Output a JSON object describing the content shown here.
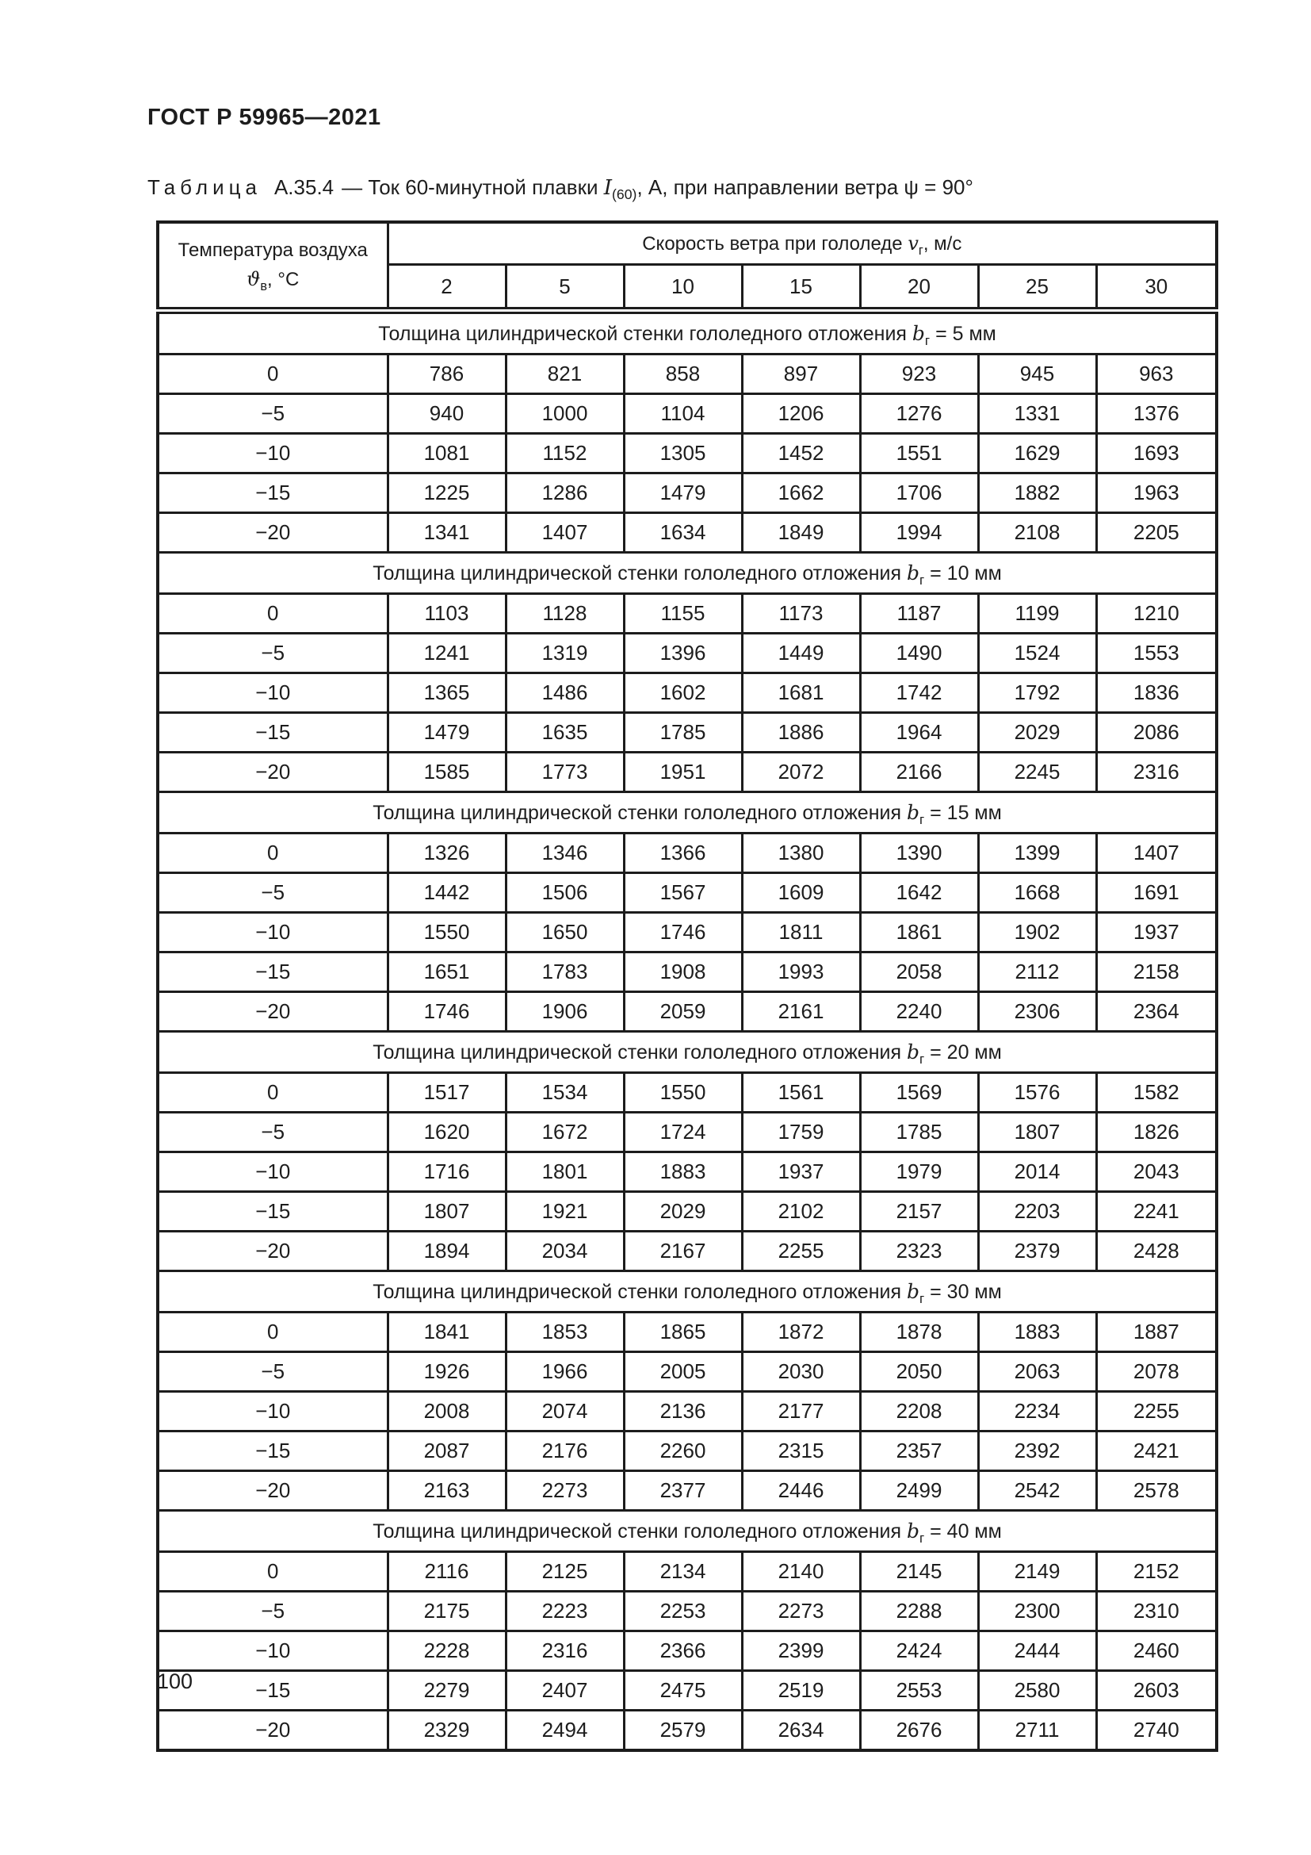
{
  "page": {
    "doc_code": "ГОСТ Р 59965—2021",
    "page_number": "100"
  },
  "table_title": {
    "label": "Таблица",
    "number": "А.35.4",
    "rest_before": "— Ток 60-минутной плавки ",
    "symbol": "I",
    "subscript": "(60)",
    "rest_after": ", А, при направлении ветра ψ = 90°"
  },
  "table": {
    "temp_header": {
      "line1": "Температура воздуха",
      "symbol": "ϑ",
      "subscript": "в",
      "unit": ", °С"
    },
    "speed_header": {
      "text": "Скорость ветра при гололеде ",
      "symbol": "v",
      "subscript": "г",
      "unit": ", м/с"
    },
    "speed_columns": [
      "2",
      "5",
      "10",
      "15",
      "20",
      "25",
      "30"
    ],
    "section_caption": {
      "prefix": "Толщина цилиндрической стенки гололедного отложения ",
      "symbol": "b",
      "subscript": "г"
    },
    "sections": [
      {
        "thickness": " = 5 мм",
        "rows": [
          {
            "temp": "0",
            "values": [
              "786",
              "821",
              "858",
              "897",
              "923",
              "945",
              "963"
            ]
          },
          {
            "temp": "−5",
            "values": [
              "940",
              "1000",
              "1104",
              "1206",
              "1276",
              "1331",
              "1376"
            ]
          },
          {
            "temp": "−10",
            "values": [
              "1081",
              "1152",
              "1305",
              "1452",
              "1551",
              "1629",
              "1693"
            ]
          },
          {
            "temp": "−15",
            "values": [
              "1225",
              "1286",
              "1479",
              "1662",
              "1706",
              "1882",
              "1963"
            ]
          },
          {
            "temp": "−20",
            "values": [
              "1341",
              "1407",
              "1634",
              "1849",
              "1994",
              "2108",
              "2205"
            ]
          }
        ]
      },
      {
        "thickness": " = 10 мм",
        "rows": [
          {
            "temp": "0",
            "values": [
              "1103",
              "1128",
              "1155",
              "1173",
              "1187",
              "1199",
              "1210"
            ]
          },
          {
            "temp": "−5",
            "values": [
              "1241",
              "1319",
              "1396",
              "1449",
              "1490",
              "1524",
              "1553"
            ]
          },
          {
            "temp": "−10",
            "values": [
              "1365",
              "1486",
              "1602",
              "1681",
              "1742",
              "1792",
              "1836"
            ]
          },
          {
            "temp": "−15",
            "values": [
              "1479",
              "1635",
              "1785",
              "1886",
              "1964",
              "2029",
              "2086"
            ]
          },
          {
            "temp": "−20",
            "values": [
              "1585",
              "1773",
              "1951",
              "2072",
              "2166",
              "2245",
              "2316"
            ]
          }
        ]
      },
      {
        "thickness": " = 15 мм",
        "rows": [
          {
            "temp": "0",
            "values": [
              "1326",
              "1346",
              "1366",
              "1380",
              "1390",
              "1399",
              "1407"
            ]
          },
          {
            "temp": "−5",
            "values": [
              "1442",
              "1506",
              "1567",
              "1609",
              "1642",
              "1668",
              "1691"
            ]
          },
          {
            "temp": "−10",
            "values": [
              "1550",
              "1650",
              "1746",
              "1811",
              "1861",
              "1902",
              "1937"
            ]
          },
          {
            "temp": "−15",
            "values": [
              "1651",
              "1783",
              "1908",
              "1993",
              "2058",
              "2112",
              "2158"
            ]
          },
          {
            "temp": "−20",
            "values": [
              "1746",
              "1906",
              "2059",
              "2161",
              "2240",
              "2306",
              "2364"
            ]
          }
        ]
      },
      {
        "thickness": " = 20 мм",
        "rows": [
          {
            "temp": "0",
            "values": [
              "1517",
              "1534",
              "1550",
              "1561",
              "1569",
              "1576",
              "1582"
            ]
          },
          {
            "temp": "−5",
            "values": [
              "1620",
              "1672",
              "1724",
              "1759",
              "1785",
              "1807",
              "1826"
            ]
          },
          {
            "temp": "−10",
            "values": [
              "1716",
              "1801",
              "1883",
              "1937",
              "1979",
              "2014",
              "2043"
            ]
          },
          {
            "temp": "−15",
            "values": [
              "1807",
              "1921",
              "2029",
              "2102",
              "2157",
              "2203",
              "2241"
            ]
          },
          {
            "temp": "−20",
            "values": [
              "1894",
              "2034",
              "2167",
              "2255",
              "2323",
              "2379",
              "2428"
            ]
          }
        ]
      },
      {
        "thickness": " = 30 мм",
        "rows": [
          {
            "temp": "0",
            "values": [
              "1841",
              "1853",
              "1865",
              "1872",
              "1878",
              "1883",
              "1887"
            ]
          },
          {
            "temp": "−5",
            "values": [
              "1926",
              "1966",
              "2005",
              "2030",
              "2050",
              "2063",
              "2078"
            ]
          },
          {
            "temp": "−10",
            "values": [
              "2008",
              "2074",
              "2136",
              "2177",
              "2208",
              "2234",
              "2255"
            ]
          },
          {
            "temp": "−15",
            "values": [
              "2087",
              "2176",
              "2260",
              "2315",
              "2357",
              "2392",
              "2421"
            ]
          },
          {
            "temp": "−20",
            "values": [
              "2163",
              "2273",
              "2377",
              "2446",
              "2499",
              "2542",
              "2578"
            ]
          }
        ]
      },
      {
        "thickness": " = 40 мм",
        "rows": [
          {
            "temp": "0",
            "values": [
              "2116",
              "2125",
              "2134",
              "2140",
              "2145",
              "2149",
              "2152"
            ]
          },
          {
            "temp": "−5",
            "values": [
              "2175",
              "2223",
              "2253",
              "2273",
              "2288",
              "2300",
              "2310"
            ]
          },
          {
            "temp": "−10",
            "values": [
              "2228",
              "2316",
              "2366",
              "2399",
              "2424",
              "2444",
              "2460"
            ]
          },
          {
            "temp": "−15",
            "values": [
              "2279",
              "2407",
              "2475",
              "2519",
              "2553",
              "2580",
              "2603"
            ]
          },
          {
            "temp": "−20",
            "values": [
              "2329",
              "2494",
              "2579",
              "2634",
              "2676",
              "2711",
              "2740"
            ]
          }
        ]
      }
    ]
  }
}
